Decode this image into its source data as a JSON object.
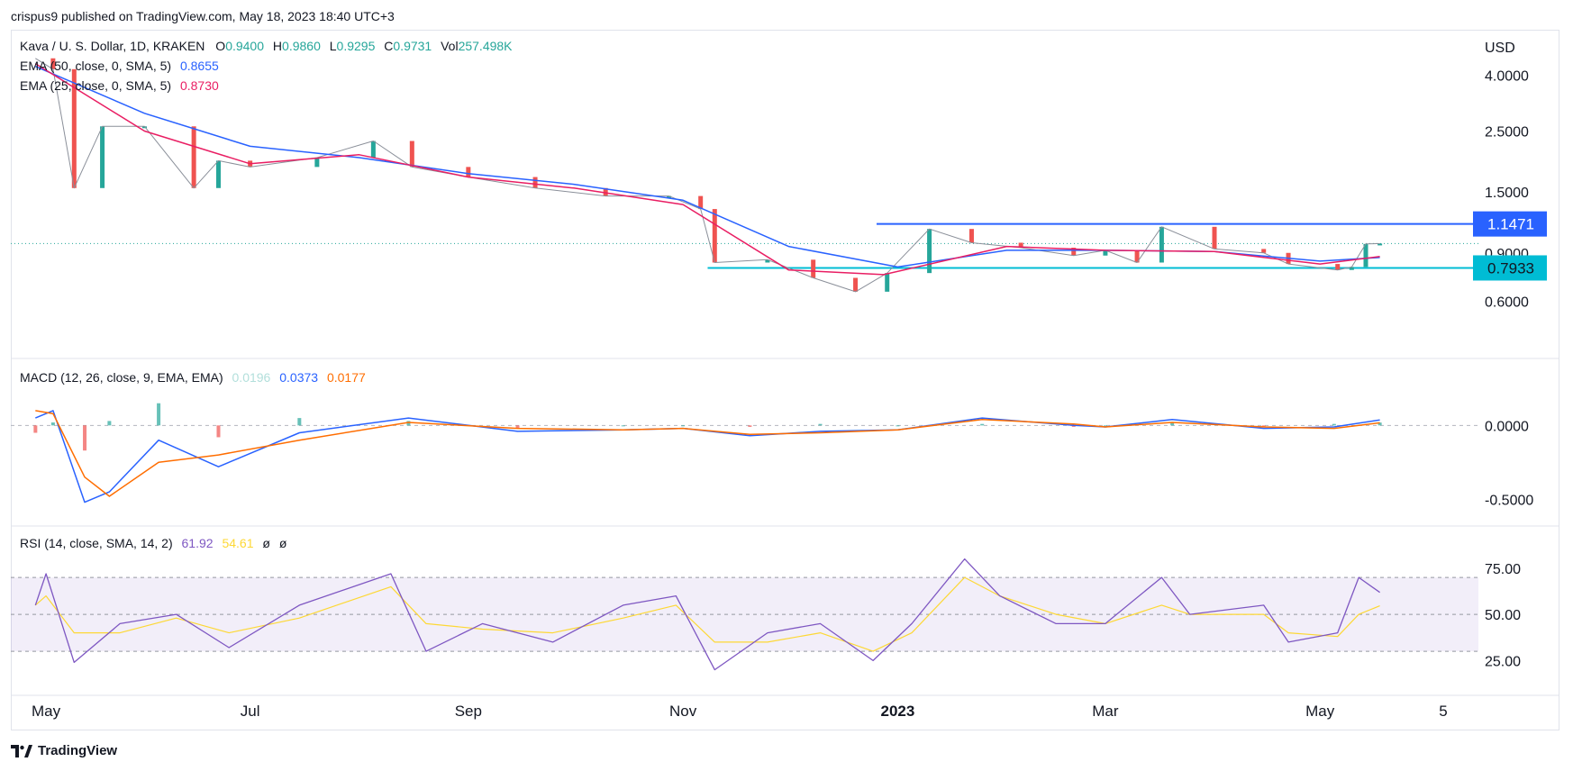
{
  "publisher_line": "crispus9 published on TradingView.com, May 18, 2023 18:40 UTC+3",
  "brand": "TradingView",
  "colors": {
    "up": "#26a69a",
    "down": "#ef5350",
    "ema50": "#2962ff",
    "ema25": "#e91e63",
    "macd": "#2962ff",
    "signal": "#ff6d00",
    "rsi": "#7e57c2",
    "rsi_ma": "#fdd835",
    "resistance": "#2962ff",
    "support": "#00bcd4",
    "price_line": "#26a69a"
  },
  "header": {
    "symbol": "Kava / U. S. Dollar, 1D, KRAKEN",
    "o_label": "O",
    "o": "0.9400",
    "h_label": "H",
    "h": "0.9860",
    "l_label": "L",
    "l": "0.9295",
    "c_label": "C",
    "c": "0.9731",
    "vol_label": "Vol",
    "vol": "257.498K",
    "ema50_label": "EMA (50, close, 0, SMA, 5)",
    "ema50_value": "0.8655",
    "ema25_label": "EMA (25, close, 0, SMA, 5)",
    "ema25_value": "0.8730",
    "macd_label": "MACD (12, 26, close, 9, EMA, EMA)",
    "macd_hist": "0.0196",
    "macd_value": "0.0373",
    "macd_signal": "0.0177",
    "rsi_label": "RSI (14, close, SMA, 14, 2)",
    "rsi_value": "61.92",
    "rsi_ma": "54.61",
    "rsi_extra1": "ø",
    "rsi_extra2": "ø"
  },
  "chart_data": {
    "type": "line",
    "title": "Kava / U. S. Dollar, 1D, KRAKEN",
    "currency": "USD",
    "price_scale": "log",
    "price_ticks": [
      "4.0000",
      "2.5000",
      "1.5000",
      "0.9000",
      "0.6000"
    ],
    "price_tick_values": [
      4.0,
      2.5,
      1.5,
      0.9,
      0.6
    ],
    "x_ticks": [
      "May",
      "Jul",
      "Sep",
      "Nov",
      "2023",
      "Mar",
      "May",
      "5"
    ],
    "price_series": {
      "name": "Price (approx. closes)",
      "x": [
        "2022-05-01",
        "2022-05-06",
        "2022-05-12",
        "2022-05-20",
        "2022-06-01",
        "2022-06-15",
        "2022-06-22",
        "2022-07-01",
        "2022-07-20",
        "2022-08-05",
        "2022-08-16",
        "2022-09-01",
        "2022-09-20",
        "2022-10-10",
        "2022-10-28",
        "2022-11-06",
        "2022-11-10",
        "2022-11-25",
        "2022-12-08",
        "2022-12-20",
        "2022-12-29",
        "2023-01-10",
        "2023-01-22",
        "2023-02-05",
        "2023-02-20",
        "2023-03-01",
        "2023-03-10",
        "2023-03-17",
        "2023-04-01",
        "2023-04-15",
        "2023-04-22",
        "2023-05-06",
        "2023-05-10",
        "2023-05-14",
        "2023-05-18"
      ],
      "y": [
        4.6,
        4.2,
        1.55,
        2.6,
        2.6,
        1.55,
        1.95,
        1.85,
        2.0,
        2.3,
        1.85,
        1.7,
        1.55,
        1.45,
        1.45,
        1.3,
        0.83,
        0.85,
        0.73,
        0.65,
        0.76,
        1.1,
        0.98,
        0.94,
        0.88,
        0.92,
        0.83,
        1.12,
        0.93,
        0.9,
        0.82,
        0.78,
        0.8,
        0.97,
        0.9731
      ]
    },
    "ema50_series": {
      "name": "EMA (50, close, 0, SMA, 5)",
      "x": [
        "2022-05-01",
        "2022-06-01",
        "2022-07-01",
        "2022-08-01",
        "2022-09-01",
        "2022-10-01",
        "2022-11-01",
        "2022-12-01",
        "2023-01-01",
        "2023-02-01",
        "2023-03-01",
        "2023-04-01",
        "2023-05-01",
        "2023-05-18"
      ],
      "y": [
        4.3,
        2.9,
        2.2,
        2.0,
        1.75,
        1.6,
        1.4,
        0.95,
        0.8,
        0.92,
        0.92,
        0.91,
        0.84,
        0.8655
      ]
    },
    "ema25_series": {
      "name": "EMA (25, close, 0, SMA, 5)",
      "x": [
        "2022-05-01",
        "2022-06-01",
        "2022-07-01",
        "2022-08-01",
        "2022-09-01",
        "2022-10-01",
        "2022-11-01",
        "2022-12-01",
        "2022-12-28",
        "2023-02-01",
        "2023-03-01",
        "2023-04-01",
        "2023-05-01",
        "2023-05-18"
      ],
      "y": [
        4.4,
        2.5,
        1.9,
        2.05,
        1.7,
        1.55,
        1.35,
        0.78,
        0.75,
        0.95,
        0.92,
        0.91,
        0.82,
        0.873
      ]
    },
    "levels": [
      {
        "name": "resistance",
        "value": 1.1471,
        "label": "1.1471"
      },
      {
        "name": "support",
        "value": 0.7933,
        "label": "0.7933"
      },
      {
        "name": "last-price",
        "value": 0.9731
      }
    ],
    "macd": {
      "ticks": [
        "0.0000",
        "-0.5000"
      ],
      "tick_values": [
        0.0,
        -0.5
      ],
      "x": [
        "2022-05-01",
        "2022-05-06",
        "2022-05-15",
        "2022-05-22",
        "2022-06-05",
        "2022-06-22",
        "2022-07-15",
        "2022-08-15",
        "2022-09-15",
        "2022-10-15",
        "2022-11-01",
        "2022-11-20",
        "2022-12-10",
        "2023-01-01",
        "2023-01-25",
        "2023-02-20",
        "2023-03-01",
        "2023-03-20",
        "2023-04-15",
        "2023-05-05",
        "2023-05-18"
      ],
      "macd_values": [
        0.05,
        0.1,
        -0.52,
        -0.45,
        -0.1,
        -0.28,
        -0.05,
        0.05,
        -0.04,
        -0.03,
        -0.02,
        -0.07,
        -0.04,
        -0.03,
        0.05,
        0.0,
        -0.01,
        0.04,
        -0.02,
        -0.01,
        0.0373
      ],
      "signal_values": [
        0.1,
        0.08,
        -0.35,
        -0.48,
        -0.25,
        -0.2,
        -0.1,
        0.02,
        -0.02,
        -0.03,
        -0.02,
        -0.06,
        -0.05,
        -0.03,
        0.04,
        0.01,
        -0.01,
        0.02,
        -0.01,
        -0.02,
        0.0177
      ]
    },
    "rsi": {
      "ticks": [
        "75.00",
        "50.00",
        "25.00"
      ],
      "tick_values": [
        75,
        50,
        25
      ],
      "band": [
        30,
        70
      ],
      "x": [
        "2022-05-01",
        "2022-05-04",
        "2022-05-12",
        "2022-05-25",
        "2022-06-10",
        "2022-06-25",
        "2022-07-15",
        "2022-08-10",
        "2022-08-20",
        "2022-09-05",
        "2022-09-25",
        "2022-10-15",
        "2022-10-30",
        "2022-11-10",
        "2022-11-25",
        "2022-12-10",
        "2022-12-25",
        "2023-01-05",
        "2023-01-20",
        "2023-01-30",
        "2023-02-15",
        "2023-03-01",
        "2023-03-17",
        "2023-03-25",
        "2023-04-15",
        "2023-04-22",
        "2023-05-06",
        "2023-05-12",
        "2023-05-18"
      ],
      "rsi_values": [
        55,
        72,
        24,
        45,
        50,
        32,
        55,
        72,
        30,
        45,
        35,
        55,
        60,
        20,
        40,
        45,
        25,
        45,
        80,
        60,
        45,
        45,
        70,
        50,
        55,
        35,
        40,
        70,
        61.92
      ],
      "ma_values": [
        55,
        60,
        40,
        40,
        48,
        40,
        48,
        65,
        45,
        42,
        40,
        48,
        55,
        35,
        35,
        40,
        30,
        40,
        70,
        60,
        50,
        45,
        55,
        50,
        50,
        40,
        38,
        50,
        54.61
      ]
    }
  }
}
